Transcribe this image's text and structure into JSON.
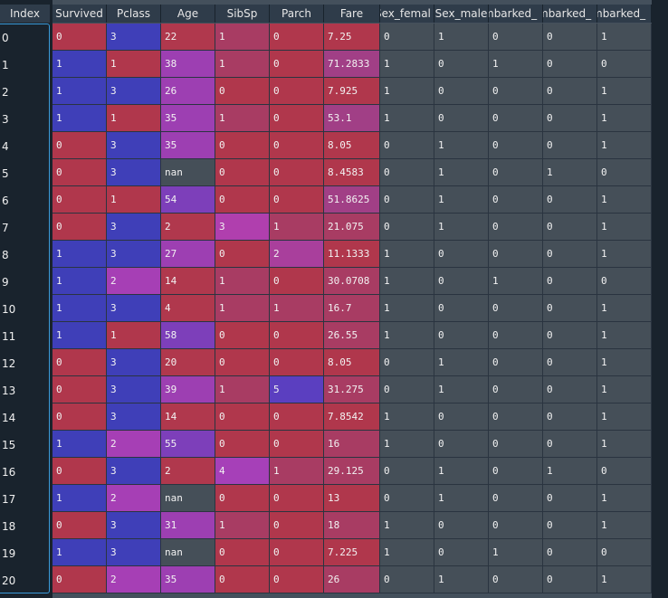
{
  "index_header": "Index",
  "columns": [
    "Survived",
    "Pclass",
    "Age",
    "SibSp",
    "Parch",
    "Fare",
    "Sex_female",
    "Sex_male",
    "Embarked_C",
    "Embarked_Q",
    "Embarked_S"
  ],
  "columns_display": [
    "Survived",
    "Pclass",
    "Age",
    "SibSp",
    "Parch",
    "Fare",
    "Sex_femal",
    "Sex_male",
    "mbarked_",
    "mbarked_",
    "mbarked_"
  ],
  "rows": [
    {
      "index": "0",
      "values": [
        "0",
        "3",
        "22",
        "1",
        "0",
        "7.25",
        "0",
        "1",
        "0",
        "0",
        "1"
      ]
    },
    {
      "index": "1",
      "values": [
        "1",
        "1",
        "38",
        "1",
        "0",
        "71.2833",
        "1",
        "0",
        "1",
        "0",
        "0"
      ]
    },
    {
      "index": "2",
      "values": [
        "1",
        "3",
        "26",
        "0",
        "0",
        "7.925",
        "1",
        "0",
        "0",
        "0",
        "1"
      ]
    },
    {
      "index": "3",
      "values": [
        "1",
        "1",
        "35",
        "1",
        "0",
        "53.1",
        "1",
        "0",
        "0",
        "0",
        "1"
      ]
    },
    {
      "index": "4",
      "values": [
        "0",
        "3",
        "35",
        "0",
        "0",
        "8.05",
        "0",
        "1",
        "0",
        "0",
        "1"
      ]
    },
    {
      "index": "5",
      "values": [
        "0",
        "3",
        "nan",
        "0",
        "0",
        "8.4583",
        "0",
        "1",
        "0",
        "1",
        "0"
      ]
    },
    {
      "index": "6",
      "values": [
        "0",
        "1",
        "54",
        "0",
        "0",
        "51.8625",
        "0",
        "1",
        "0",
        "0",
        "1"
      ]
    },
    {
      "index": "7",
      "values": [
        "0",
        "3",
        "2",
        "3",
        "1",
        "21.075",
        "0",
        "1",
        "0",
        "0",
        "1"
      ]
    },
    {
      "index": "8",
      "values": [
        "1",
        "3",
        "27",
        "0",
        "2",
        "11.1333",
        "1",
        "0",
        "0",
        "0",
        "1"
      ]
    },
    {
      "index": "9",
      "values": [
        "1",
        "2",
        "14",
        "1",
        "0",
        "30.0708",
        "1",
        "0",
        "1",
        "0",
        "0"
      ]
    },
    {
      "index": "10",
      "values": [
        "1",
        "3",
        "4",
        "1",
        "1",
        "16.7",
        "1",
        "0",
        "0",
        "0",
        "1"
      ]
    },
    {
      "index": "11",
      "values": [
        "1",
        "1",
        "58",
        "0",
        "0",
        "26.55",
        "1",
        "0",
        "0",
        "0",
        "1"
      ]
    },
    {
      "index": "12",
      "values": [
        "0",
        "3",
        "20",
        "0",
        "0",
        "8.05",
        "0",
        "1",
        "0",
        "0",
        "1"
      ]
    },
    {
      "index": "13",
      "values": [
        "0",
        "3",
        "39",
        "1",
        "5",
        "31.275",
        "0",
        "1",
        "0",
        "0",
        "1"
      ]
    },
    {
      "index": "14",
      "values": [
        "0",
        "3",
        "14",
        "0",
        "0",
        "7.8542",
        "1",
        "0",
        "0",
        "0",
        "1"
      ]
    },
    {
      "index": "15",
      "values": [
        "1",
        "2",
        "55",
        "0",
        "0",
        "16",
        "1",
        "0",
        "0",
        "0",
        "1"
      ]
    },
    {
      "index": "16",
      "values": [
        "0",
        "3",
        "2",
        "4",
        "1",
        "29.125",
        "0",
        "1",
        "0",
        "1",
        "0"
      ]
    },
    {
      "index": "17",
      "values": [
        "1",
        "2",
        "nan",
        "0",
        "0",
        "13",
        "0",
        "1",
        "0",
        "0",
        "1"
      ]
    },
    {
      "index": "18",
      "values": [
        "0",
        "3",
        "31",
        "1",
        "0",
        "18",
        "1",
        "0",
        "0",
        "0",
        "1"
      ]
    },
    {
      "index": "19",
      "values": [
        "1",
        "3",
        "nan",
        "0",
        "0",
        "7.225",
        "1",
        "0",
        "1",
        "0",
        "0"
      ]
    },
    {
      "index": "20",
      "values": [
        "0",
        "2",
        "35",
        "0",
        "0",
        "26",
        "0",
        "1",
        "0",
        "0",
        "1"
      ]
    }
  ],
  "cell_colors": {
    "survived_0": "#b0374c",
    "survived_1": "#3f3fb8",
    "pclass_1": "#b0374c",
    "pclass_2": "#a63fb5",
    "pclass_3": "#3f3fb8",
    "age_low": "#b0384d",
    "age_mid": "#9d3fb2",
    "age_high": "#7d3fba",
    "nan": "#454f58",
    "sibsp_0": "#b0374c",
    "sibsp_1": "#a83c63",
    "sibsp_3": "#b03fae",
    "sibsp_4": "#a640b8",
    "parch_0": "#b0374c",
    "parch_1": "#a83c63",
    "parch_2": "#a93f9c",
    "parch_5": "#5b3fc0",
    "fare_low": "#b0374c",
    "fare_mid": "#a83c63",
    "fare_high": "#a13f86",
    "binary": "#454f58"
  }
}
